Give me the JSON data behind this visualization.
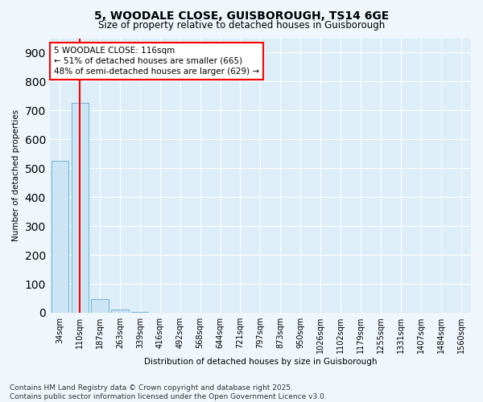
{
  "title": "5, WOODALE CLOSE, GUISBOROUGH, TS14 6GE",
  "subtitle": "Size of property relative to detached houses in Guisborough",
  "xlabel": "Distribution of detached houses by size in Guisborough",
  "ylabel": "Number of detached properties",
  "annotation_text": "5 WOODALE CLOSE: 116sqm\n← 51% of detached houses are smaller (665)\n48% of semi-detached houses are larger (629) →",
  "footer_text": "Contains HM Land Registry data © Crown copyright and database right 2025.\nContains public sector information licensed under the Open Government Licence v3.0.",
  "categories": [
    "34sqm",
    "110sqm",
    "187sqm",
    "263sqm",
    "339sqm",
    "416sqm",
    "492sqm",
    "568sqm",
    "644sqm",
    "721sqm",
    "797sqm",
    "873sqm",
    "950sqm",
    "1026sqm",
    "1102sqm",
    "1179sqm",
    "1255sqm",
    "1331sqm",
    "1407sqm",
    "1484sqm",
    "1560sqm"
  ],
  "values": [
    525,
    725,
    47,
    10,
    2,
    1,
    0,
    0,
    0,
    0,
    0,
    0,
    0,
    0,
    0,
    0,
    0,
    0,
    0,
    0,
    0
  ],
  "bar_color": "#cce5f5",
  "bar_edge_color": "#7ab8d9",
  "red_line_index": 1,
  "ylim": [
    0,
    950
  ],
  "yticks": [
    0,
    100,
    200,
    300,
    400,
    500,
    600,
    700,
    800,
    900
  ],
  "bg_color": "#f0f7fc",
  "plot_bg_color": "#ddeef8",
  "grid_color": "#ffffff",
  "title_fontsize": 10,
  "subtitle_fontsize": 8.5,
  "axis_label_fontsize": 7.5,
  "tick_fontsize": 7,
  "footer_fontsize": 6.5,
  "annotation_fontsize": 7.5
}
